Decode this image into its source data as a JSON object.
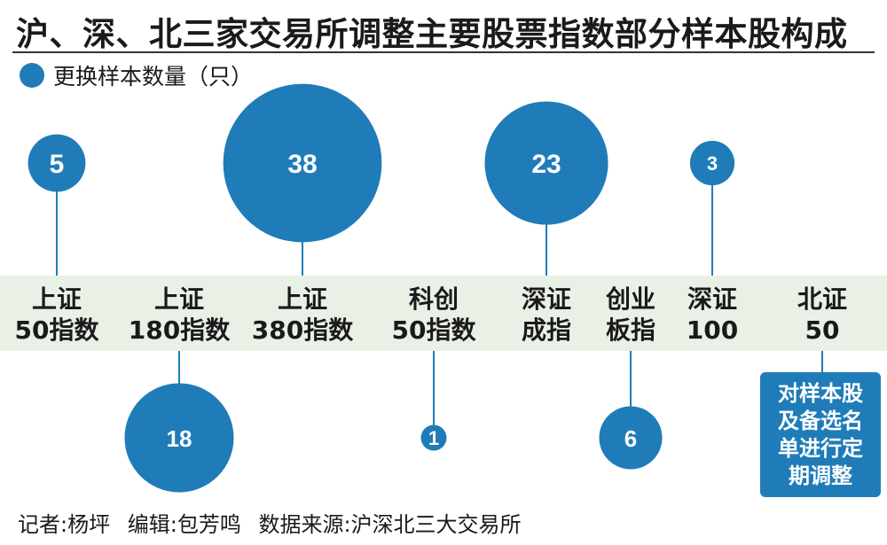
{
  "title": "沪、深、北三家交易所调整主要股票指数部分样本股构成",
  "legend": {
    "label": "更换样本数量（只）",
    "color": "#1f7cb8"
  },
  "note": {
    "lines": [
      "对样本股",
      "及备选名",
      "单进行定",
      "期调整"
    ]
  },
  "footer": {
    "reporter": "记者:杨坪",
    "editor": "编辑:包芳鸣",
    "source": "数据来源:沪深北三大交易所"
  },
  "colors": {
    "bubble": "#1f7cb8",
    "band": "#e9f0e6",
    "label_text": "#1a1a1a",
    "stem": "#1f7cb8"
  },
  "chart_data": {
    "type": "bubble",
    "title": "沪、深、北三家交易所调整主要股票指数部分样本股构成",
    "value_label": "更换样本数量（只）",
    "categories": [
      {
        "lines": [
          "上证",
          "50指数"
        ],
        "value": 5,
        "placement": "above"
      },
      {
        "lines": [
          "上证",
          "180指数"
        ],
        "value": 18,
        "placement": "below"
      },
      {
        "lines": [
          "上证",
          "380指数"
        ],
        "value": 38,
        "placement": "above"
      },
      {
        "lines": [
          "科创",
          "50指数"
        ],
        "value": 1,
        "placement": "below"
      },
      {
        "lines": [
          "深证",
          "成指"
        ],
        "value": 23,
        "placement": "above"
      },
      {
        "lines": [
          "创业",
          "板指"
        ],
        "value": 6,
        "placement": "below"
      },
      {
        "lines": [
          "深证",
          "100"
        ],
        "value": 3,
        "placement": "above"
      },
      {
        "lines": [
          "北证",
          "50"
        ],
        "value": null,
        "placement": "note"
      }
    ]
  }
}
